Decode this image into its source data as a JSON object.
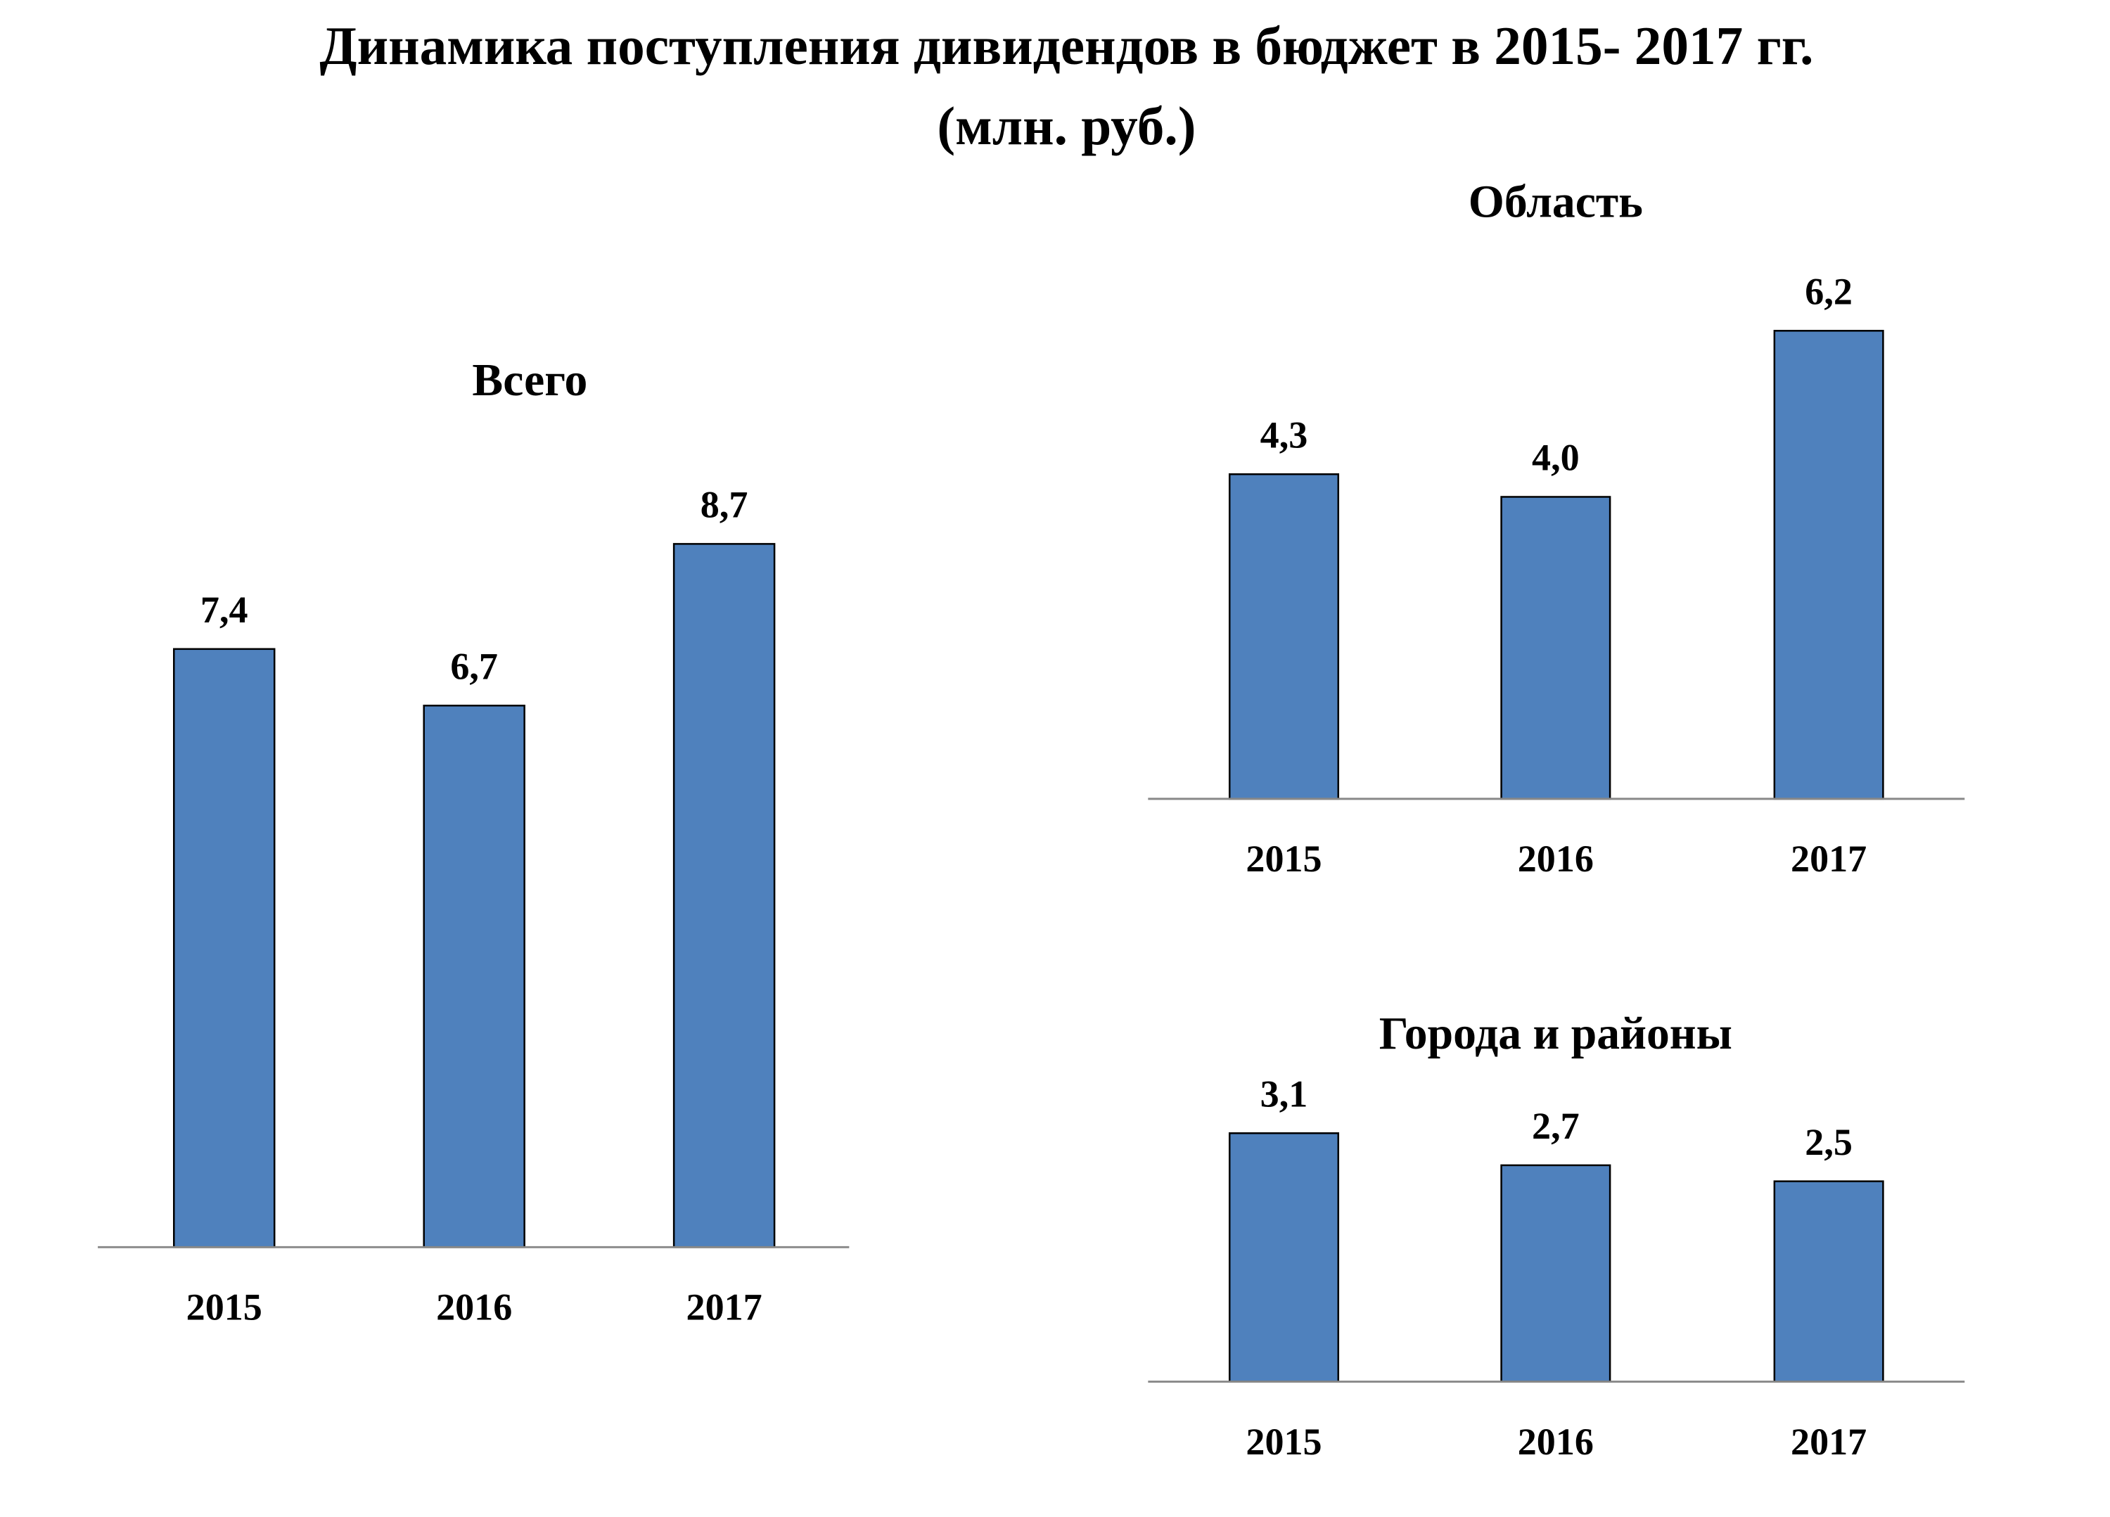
{
  "title": "Динамика поступления дивидендов в бюджет в 2015- 2017 гг.",
  "subtitle": "(млн. руб.)",
  "chart_data": [
    {
      "type": "bar",
      "title": "Всего",
      "categories": [
        "2015",
        "2016",
        "2017"
      ],
      "values": [
        7.4,
        6.7,
        8.7
      ],
      "value_labels": [
        "7,4",
        "6,7",
        "8,7"
      ],
      "color": "#4f81bd",
      "ylim": [
        0,
        10
      ]
    },
    {
      "type": "bar",
      "title": "Область",
      "categories": [
        "2015",
        "2016",
        "2017"
      ],
      "values": [
        4.3,
        4.0,
        6.2
      ],
      "value_labels": [
        "4,3",
        "4,0",
        "6,2"
      ],
      "color": "#4f81bd",
      "ylim": [
        0,
        7
      ]
    },
    {
      "type": "bar",
      "title": "Города и районы",
      "categories": [
        "2015",
        "2016",
        "2017"
      ],
      "values": [
        3.1,
        2.7,
        2.5
      ],
      "value_labels": [
        "3,1",
        "2,7",
        "2,5"
      ],
      "color": "#4f81bd",
      "ylim": [
        0,
        5
      ]
    }
  ]
}
